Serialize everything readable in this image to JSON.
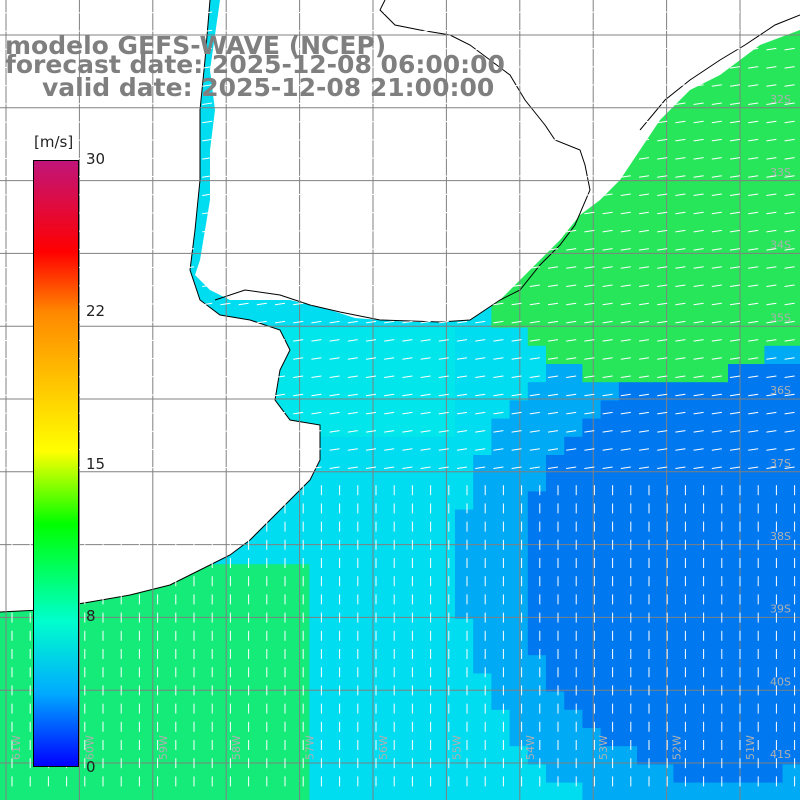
{
  "title": {
    "line1": "modelo GEFS-WAVE (NCEP)",
    "line2": "forecast date: 2025-12-08 06:00:00",
    "line3": "valid date: 2025-12-08 21:00:00"
  },
  "colorbar": {
    "unit": "[m/s]",
    "ticks": [
      "30",
      "22",
      "15",
      "8",
      "0"
    ],
    "colors": [
      "#c1157a",
      "#ff0000",
      "#ff8800",
      "#ffff00",
      "#00ff00",
      "#00ffcc",
      "#00aaff",
      "#0000ff"
    ]
  },
  "lat_labels": [
    "32S",
    "33S",
    "34S",
    "35S",
    "36S",
    "37S",
    "38S",
    "39S",
    "40S",
    "41S"
  ],
  "lon_labels": [
    "61W",
    "60W",
    "59W",
    "58W",
    "57W",
    "56W",
    "55W",
    "54W",
    "53W",
    "52W",
    "51W"
  ],
  "colors": {
    "land": "#ffffff",
    "coast": "#000000",
    "grid": "#808080",
    "arrow": "#ffffff",
    "title": "#7f7f7f"
  }
}
